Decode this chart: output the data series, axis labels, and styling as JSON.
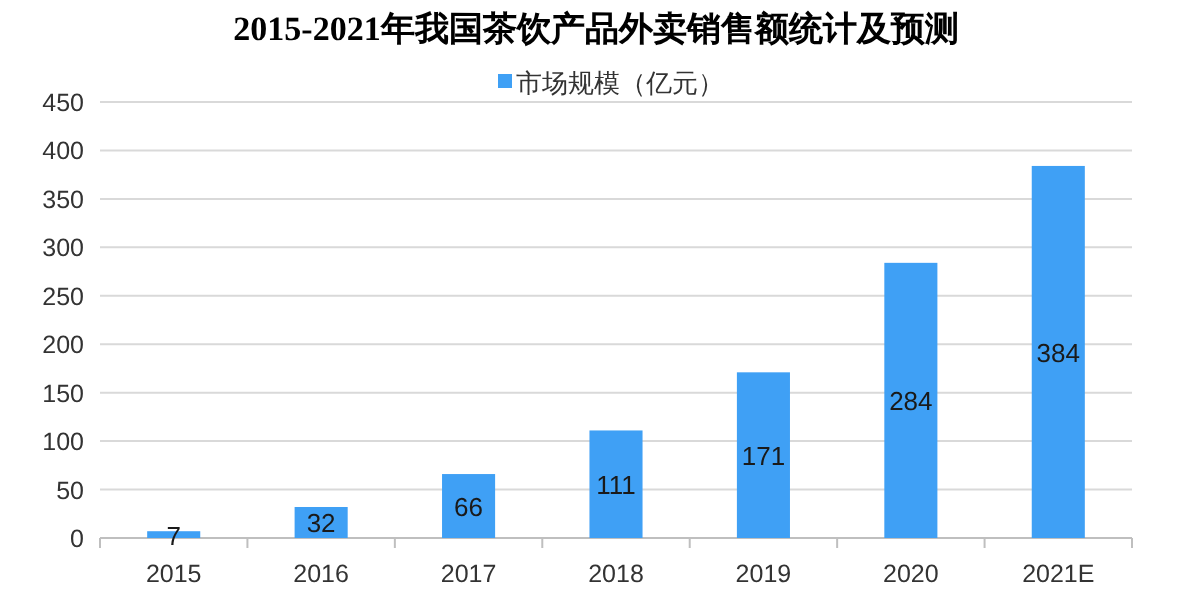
{
  "chart_data": {
    "type": "bar",
    "title": "2015-2021年我国茶饮产品外卖销售额统计及预测",
    "categories": [
      "2015",
      "2016",
      "2017",
      "2018",
      "2019",
      "2020",
      "2021E"
    ],
    "series": [
      {
        "name": "市场规模（亿元）",
        "color": "#3fa0f5",
        "values": [
          7,
          32,
          66,
          111,
          171,
          284,
          384
        ]
      }
    ],
    "ylim": [
      0,
      450
    ],
    "yticks": [
      0,
      50,
      100,
      150,
      200,
      250,
      300,
      350,
      400,
      450
    ],
    "grid": "y",
    "legend": "top",
    "data_labels": true
  }
}
